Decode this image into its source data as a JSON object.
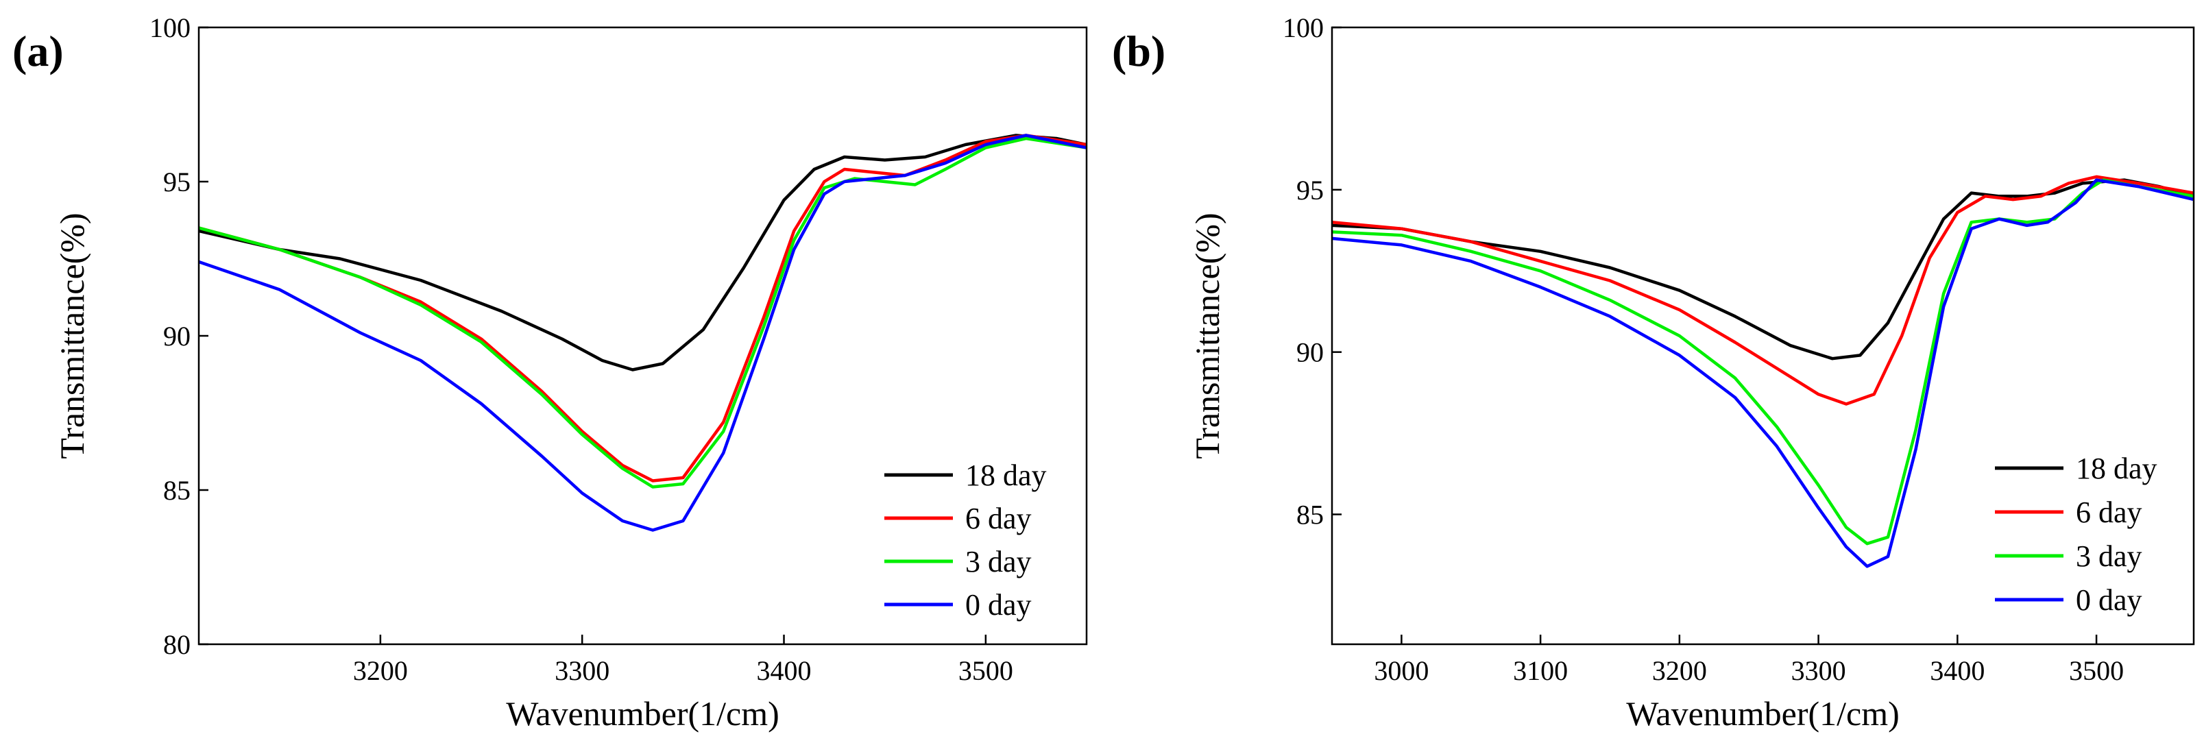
{
  "chart_data": [
    {
      "panel_label": "(a)",
      "type": "line",
      "xlabel": "Wavenumber(1/cm)",
      "ylabel": "Transmittance(%)",
      "xlim": [
        3110,
        3550
      ],
      "ylim": [
        80,
        100
      ],
      "x_ticks": [
        3200,
        3300,
        3400,
        3500
      ],
      "y_ticks": [
        80,
        85,
        90,
        95,
        100
      ],
      "legend": "bottom-right",
      "series": [
        {
          "name": "18 day",
          "color": "#000000",
          "points": [
            [
              3110,
              93.4
            ],
            [
              3150,
              92.8
            ],
            [
              3180,
              92.5
            ],
            [
              3220,
              91.8
            ],
            [
              3260,
              90.8
            ],
            [
              3290,
              89.9
            ],
            [
              3310,
              89.2
            ],
            [
              3325,
              88.9
            ],
            [
              3340,
              89.1
            ],
            [
              3360,
              90.2
            ],
            [
              3380,
              92.2
            ],
            [
              3400,
              94.4
            ],
            [
              3415,
              95.4
            ],
            [
              3430,
              95.8
            ],
            [
              3450,
              95.7
            ],
            [
              3470,
              95.8
            ],
            [
              3490,
              96.2
            ],
            [
              3515,
              96.5
            ],
            [
              3535,
              96.4
            ],
            [
              3550,
              96.2
            ]
          ]
        },
        {
          "name": "6 day",
          "color": "#ff0000",
          "points": [
            [
              3110,
              93.5
            ],
            [
              3150,
              92.8
            ],
            [
              3190,
              91.9
            ],
            [
              3220,
              91.1
            ],
            [
              3250,
              89.9
            ],
            [
              3280,
              88.2
            ],
            [
              3300,
              86.9
            ],
            [
              3320,
              85.8
            ],
            [
              3335,
              85.3
            ],
            [
              3350,
              85.4
            ],
            [
              3370,
              87.2
            ],
            [
              3390,
              90.6
            ],
            [
              3405,
              93.4
            ],
            [
              3420,
              95.0
            ],
            [
              3430,
              95.4
            ],
            [
              3445,
              95.3
            ],
            [
              3460,
              95.2
            ],
            [
              3480,
              95.7
            ],
            [
              3500,
              96.3
            ],
            [
              3520,
              96.5
            ],
            [
              3550,
              96.2
            ]
          ]
        },
        {
          "name": "3 day",
          "color": "#00ee00",
          "points": [
            [
              3110,
              93.5
            ],
            [
              3150,
              92.8
            ],
            [
              3190,
              91.9
            ],
            [
              3220,
              91.0
            ],
            [
              3250,
              89.8
            ],
            [
              3280,
              88.1
            ],
            [
              3300,
              86.8
            ],
            [
              3320,
              85.7
            ],
            [
              3335,
              85.1
            ],
            [
              3350,
              85.2
            ],
            [
              3370,
              86.9
            ],
            [
              3390,
              90.3
            ],
            [
              3405,
              93.1
            ],
            [
              3420,
              94.8
            ],
            [
              3435,
              95.1
            ],
            [
              3450,
              95.0
            ],
            [
              3465,
              94.9
            ],
            [
              3480,
              95.4
            ],
            [
              3500,
              96.1
            ],
            [
              3520,
              96.4
            ],
            [
              3550,
              96.1
            ]
          ]
        },
        {
          "name": "0 day",
          "color": "#0000ff",
          "points": [
            [
              3110,
              92.4
            ],
            [
              3150,
              91.5
            ],
            [
              3190,
              90.1
            ],
            [
              3220,
              89.2
            ],
            [
              3250,
              87.8
            ],
            [
              3280,
              86.1
            ],
            [
              3300,
              84.9
            ],
            [
              3320,
              84.0
            ],
            [
              3335,
              83.7
            ],
            [
              3350,
              84.0
            ],
            [
              3370,
              86.2
            ],
            [
              3390,
              89.9
            ],
            [
              3405,
              92.8
            ],
            [
              3420,
              94.6
            ],
            [
              3430,
              95.0
            ],
            [
              3445,
              95.1
            ],
            [
              3460,
              95.2
            ],
            [
              3480,
              95.6
            ],
            [
              3500,
              96.2
            ],
            [
              3520,
              96.5
            ],
            [
              3550,
              96.1
            ]
          ]
        }
      ]
    },
    {
      "panel_label": "(b)",
      "type": "line",
      "xlabel": "Wavenumber(1/cm)",
      "ylabel": "Transmittance(%)",
      "xlim": [
        2950,
        3570
      ],
      "ylim": [
        81,
        100
      ],
      "x_ticks": [
        3000,
        3100,
        3200,
        3300,
        3400,
        3500
      ],
      "y_ticks": [
        85,
        90,
        95,
        100
      ],
      "legend": "bottom-right",
      "series": [
        {
          "name": "18 day",
          "color": "#000000",
          "points": [
            [
              2950,
              93.9
            ],
            [
              3000,
              93.8
            ],
            [
              3050,
              93.4
            ],
            [
              3100,
              93.1
            ],
            [
              3150,
              92.6
            ],
            [
              3200,
              91.9
            ],
            [
              3240,
              91.1
            ],
            [
              3280,
              90.2
            ],
            [
              3310,
              89.8
            ],
            [
              3330,
              89.9
            ],
            [
              3350,
              90.9
            ],
            [
              3370,
              92.5
            ],
            [
              3390,
              94.1
            ],
            [
              3410,
              94.9
            ],
            [
              3430,
              94.8
            ],
            [
              3450,
              94.8
            ],
            [
              3470,
              94.9
            ],
            [
              3490,
              95.2
            ],
            [
              3520,
              95.3
            ],
            [
              3545,
              95.1
            ],
            [
              3570,
              94.8
            ]
          ]
        },
        {
          "name": "6 day",
          "color": "#ff0000",
          "points": [
            [
              2950,
              94.0
            ],
            [
              3000,
              93.8
            ],
            [
              3050,
              93.4
            ],
            [
              3100,
              92.8
            ],
            [
              3150,
              92.2
            ],
            [
              3200,
              91.3
            ],
            [
              3240,
              90.3
            ],
            [
              3270,
              89.5
            ],
            [
              3300,
              88.7
            ],
            [
              3320,
              88.4
            ],
            [
              3340,
              88.7
            ],
            [
              3360,
              90.5
            ],
            [
              3380,
              92.9
            ],
            [
              3400,
              94.3
            ],
            [
              3420,
              94.8
            ],
            [
              3440,
              94.7
            ],
            [
              3460,
              94.8
            ],
            [
              3480,
              95.2
            ],
            [
              3500,
              95.4
            ],
            [
              3530,
              95.2
            ],
            [
              3570,
              94.9
            ]
          ]
        },
        {
          "name": "3 day",
          "color": "#00ee00",
          "points": [
            [
              2950,
              93.7
            ],
            [
              3000,
              93.6
            ],
            [
              3050,
              93.1
            ],
            [
              3100,
              92.5
            ],
            [
              3150,
              91.6
            ],
            [
              3200,
              90.5
            ],
            [
              3240,
              89.2
            ],
            [
              3270,
              87.7
            ],
            [
              3300,
              85.9
            ],
            [
              3320,
              84.6
            ],
            [
              3335,
              84.1
            ],
            [
              3350,
              84.3
            ],
            [
              3370,
              87.6
            ],
            [
              3390,
              91.8
            ],
            [
              3410,
              94.0
            ],
            [
              3430,
              94.1
            ],
            [
              3450,
              94.0
            ],
            [
              3470,
              94.1
            ],
            [
              3490,
              94.9
            ],
            [
              3505,
              95.3
            ],
            [
              3530,
              95.1
            ],
            [
              3570,
              94.8
            ]
          ]
        },
        {
          "name": "0 day",
          "color": "#0000ff",
          "points": [
            [
              2950,
              93.5
            ],
            [
              3000,
              93.3
            ],
            [
              3050,
              92.8
            ],
            [
              3100,
              92.0
            ],
            [
              3150,
              91.1
            ],
            [
              3200,
              89.9
            ],
            [
              3240,
              88.6
            ],
            [
              3270,
              87.1
            ],
            [
              3300,
              85.2
            ],
            [
              3320,
              84.0
            ],
            [
              3335,
              83.4
            ],
            [
              3350,
              83.7
            ],
            [
              3370,
              87.0
            ],
            [
              3390,
              91.4
            ],
            [
              3410,
              93.8
            ],
            [
              3430,
              94.1
            ],
            [
              3450,
              93.9
            ],
            [
              3465,
              94.0
            ],
            [
              3485,
              94.6
            ],
            [
              3500,
              95.3
            ],
            [
              3530,
              95.1
            ],
            [
              3570,
              94.7
            ]
          ]
        }
      ]
    }
  ]
}
